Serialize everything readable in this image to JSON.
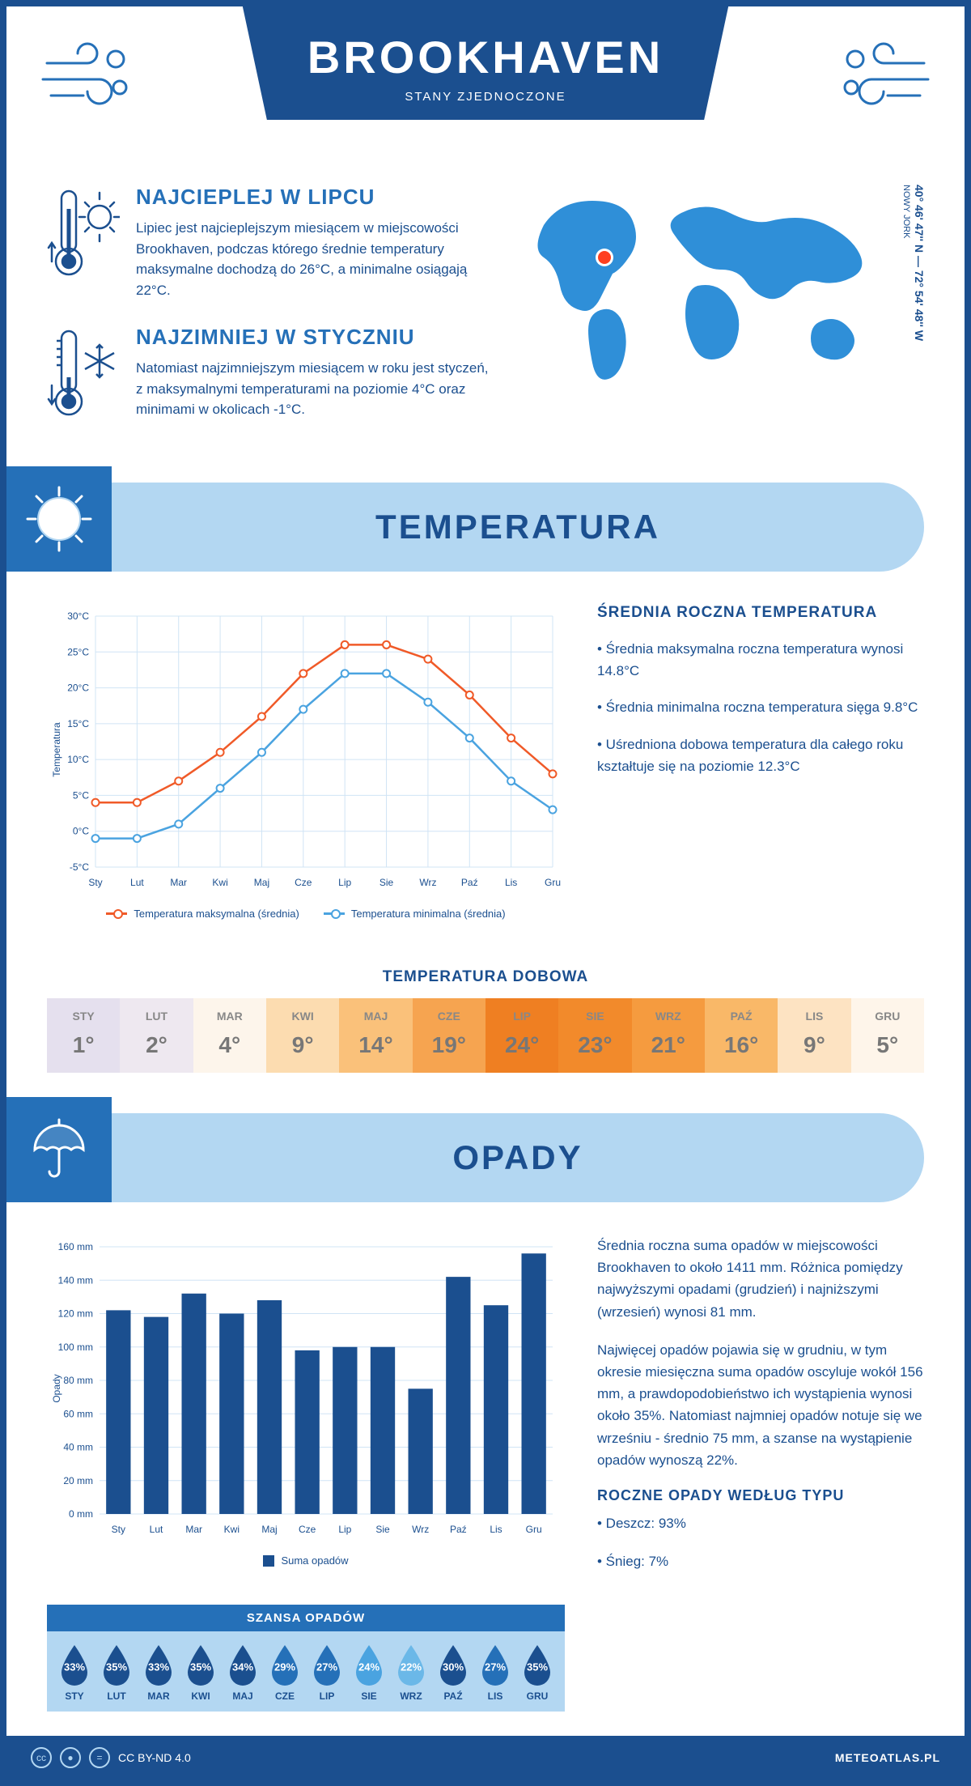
{
  "header": {
    "city": "BROOKHAVEN",
    "country": "STANY ZJEDNOCZONE"
  },
  "coords": {
    "text": "40° 46' 47'' N — 72° 54' 48'' W",
    "region": "NOWY JORK"
  },
  "intro": {
    "warm": {
      "title": "NAJCIEPLEJ W LIPCU",
      "text": "Lipiec jest najcieplejszym miesiącem w miejscowości Brookhaven, podczas którego średnie temperatury maksymalne dochodzą do 26°C, a minimalne osiągają 22°C."
    },
    "cold": {
      "title": "NAJZIMNIEJ W STYCZNIU",
      "text": "Natomiast najzimniejszym miesiącem w roku jest styczeń, z maksymalnymi temperaturami na poziomie 4°C oraz minimami w okolicach -1°C."
    }
  },
  "temp_section": {
    "title": "TEMPERATURA",
    "chart": {
      "type": "line",
      "months": [
        "Sty",
        "Lut",
        "Mar",
        "Kwi",
        "Maj",
        "Cze",
        "Lip",
        "Sie",
        "Wrz",
        "Paź",
        "Lis",
        "Gru"
      ],
      "ylabel": "Temperatura",
      "ylim": [
        -5,
        30
      ],
      "ytick_step": 5,
      "ytick_suffix": "°C",
      "series": [
        {
          "name": "Temperatura maksymalna (średnia)",
          "color": "#f05a28",
          "values": [
            4,
            4,
            7,
            11,
            16,
            22,
            26,
            26,
            24,
            19,
            13,
            8
          ]
        },
        {
          "name": "Temperatura minimalna (średnia)",
          "color": "#4aa3e0",
          "values": [
            -1,
            -1,
            1,
            6,
            11,
            17,
            22,
            22,
            18,
            13,
            7,
            3
          ]
        }
      ],
      "grid_color": "#d0e4f5",
      "marker": "circle",
      "line_width": 2.5
    },
    "avg": {
      "title": "ŚREDNIA ROCZNA TEMPERATURA",
      "bullets": [
        "• Średnia maksymalna roczna temperatura wynosi 14.8°C",
        "• Średnia minimalna roczna temperatura sięga 9.8°C",
        "• Uśredniona dobowa temperatura dla całego roku kształtuje się na poziomie 12.3°C"
      ]
    },
    "daily": {
      "title": "TEMPERATURA DOBOWA",
      "months": [
        "STY",
        "LUT",
        "MAR",
        "KWI",
        "MAJ",
        "CZE",
        "LIP",
        "SIE",
        "WRZ",
        "PAŹ",
        "LIS",
        "GRU"
      ],
      "values": [
        "1°",
        "2°",
        "4°",
        "9°",
        "14°",
        "19°",
        "24°",
        "23°",
        "21°",
        "16°",
        "9°",
        "5°"
      ],
      "colors": [
        "#e5e0ee",
        "#eee8f0",
        "#fdf5eb",
        "#fcdcb0",
        "#fac17a",
        "#f6a450",
        "#ef7f22",
        "#f28a2b",
        "#f59b3f",
        "#f9b868",
        "#fde3c2",
        "#fef5ea"
      ]
    }
  },
  "precip_section": {
    "title": "OPADY",
    "chart": {
      "type": "bar",
      "months": [
        "Sty",
        "Lut",
        "Mar",
        "Kwi",
        "Maj",
        "Cze",
        "Lip",
        "Sie",
        "Wrz",
        "Paź",
        "Lis",
        "Gru"
      ],
      "ylabel": "Opady",
      "ylim": [
        0,
        160
      ],
      "ytick_step": 20,
      "ytick_suffix": " mm",
      "bar_color": "#1b4f8f",
      "values": [
        122,
        118,
        132,
        120,
        128,
        98,
        100,
        100,
        75,
        142,
        125,
        156
      ],
      "legend": "Suma opadów"
    },
    "summary": [
      "Średnia roczna suma opadów w miejscowości Brookhaven to około 1411 mm. Różnica pomiędzy najwyższymi opadami (grudzień) i najniższymi (wrzesień) wynosi 81 mm.",
      "Najwięcej opadów pojawia się w grudniu, w tym okresie miesięczna suma opadów oscyluje wokół 156 mm, a prawdopodobieństwo ich wystąpienia wynosi około 35%. Natomiast najmniej opadów notuje się we wrześniu - średnio 75 mm, a szanse na wystąpienie opadów wynoszą 22%."
    ],
    "chance": {
      "title": "SZANSA OPADÓW",
      "months": [
        "STY",
        "LUT",
        "MAR",
        "KWI",
        "MAJ",
        "CZE",
        "LIP",
        "SIE",
        "WRZ",
        "PAŹ",
        "LIS",
        "GRU"
      ],
      "values": [
        "33%",
        "35%",
        "33%",
        "35%",
        "34%",
        "29%",
        "27%",
        "24%",
        "22%",
        "30%",
        "27%",
        "35%"
      ],
      "drop_colors": [
        "#1b4f8f",
        "#1b4f8f",
        "#1b4f8f",
        "#1b4f8f",
        "#1b4f8f",
        "#2570b8",
        "#2570b8",
        "#4aa3e0",
        "#6bb8e8",
        "#1b4f8f",
        "#2570b8",
        "#1b4f8f"
      ]
    },
    "by_type": {
      "title": "ROCZNE OPADY WEDŁUG TYPU",
      "items": [
        "• Deszcz: 93%",
        "• Śnieg: 7%"
      ]
    }
  },
  "footer": {
    "license": "CC BY-ND 4.0",
    "site": "METEOATLAS.PL"
  }
}
